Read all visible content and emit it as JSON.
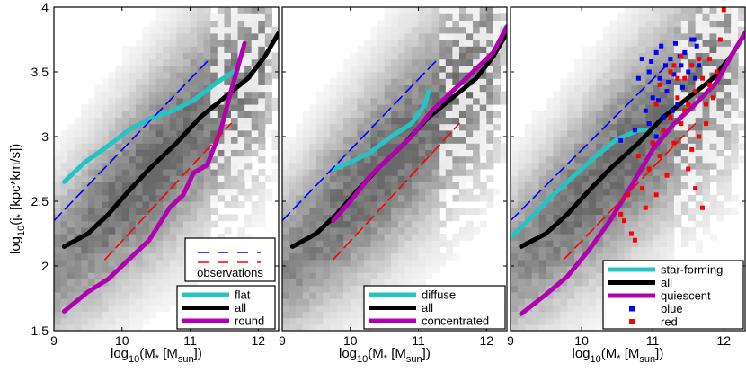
{
  "chart_data": [
    {
      "type": "line",
      "xlabel": "log10(M* [Msun])",
      "xlabel_parts": {
        "pre": "log",
        "sub1": "10",
        "mid": "(M",
        "star": "*",
        "open": " [M",
        "sub2": "sun",
        "close": "])"
      },
      "ylabel": "log10(j* [kpc*km/s])",
      "ylabel_parts": {
        "pre": "log",
        "sub1": "10",
        "mid": "(j",
        "star": "*",
        "rest": " [kpc*km/s])"
      },
      "xlim": [
        9,
        12.3
      ],
      "ylim": [
        1.5,
        4
      ],
      "xticks": [
        "9",
        "10",
        "11",
        "12"
      ],
      "yticks": [
        "1.5",
        "2",
        "2.5",
        "3",
        "3.5",
        "4"
      ],
      "background": "grayscale 2D histogram",
      "obs_legend": {
        "text": "observations",
        "placement": "lower-right",
        "colors": [
          "#0000ff",
          "#ff0000"
        ]
      },
      "legend_placement": "lower-right",
      "series": [
        {
          "name": "flat",
          "color": "#25c4c4",
          "x": [
            9.15,
            9.45,
            9.8,
            10.1,
            10.45,
            10.75,
            11.05,
            11.4,
            11.7
          ],
          "y": [
            2.65,
            2.8,
            2.93,
            3.05,
            3.15,
            3.2,
            3.28,
            3.42,
            3.52
          ]
        },
        {
          "name": "all",
          "color": "#000000",
          "x": [
            9.15,
            9.5,
            9.8,
            10.1,
            10.4,
            10.8,
            11.15,
            11.5,
            11.85,
            12.1,
            12.3
          ],
          "y": [
            2.15,
            2.25,
            2.4,
            2.58,
            2.75,
            2.95,
            3.15,
            3.3,
            3.45,
            3.62,
            3.8
          ]
        },
        {
          "name": "round",
          "color": "#b000b0",
          "x": [
            9.15,
            9.5,
            9.8,
            10.1,
            10.4,
            10.7,
            10.9,
            11.05,
            11.25,
            11.45,
            11.6,
            11.8
          ],
          "y": [
            1.65,
            1.8,
            1.9,
            2.05,
            2.2,
            2.45,
            2.55,
            2.72,
            2.78,
            3.05,
            3.35,
            3.72
          ]
        },
        {
          "name": "",
          "color": "#0000ff",
          "dash": true,
          "x": [
            9,
            11.25
          ],
          "y": [
            2.35,
            3.58
          ]
        },
        {
          "name": "",
          "color": "#ff0000",
          "dash": true,
          "x": [
            9.75,
            11.6
          ],
          "y": [
            2.05,
            3.1
          ]
        }
      ]
    },
    {
      "type": "line",
      "xlabel": "log10(M* [Msun])",
      "xlabel_parts": {
        "pre": "log",
        "sub1": "10",
        "mid": "(M",
        "star": "*",
        "open": " [M",
        "sub2": "sun",
        "close": "])"
      },
      "xlim": [
        9,
        12.3
      ],
      "ylim": [
        1.5,
        4
      ],
      "xticks": [
        "9",
        "10",
        "11",
        "12"
      ],
      "background": "grayscale 2D histogram",
      "legend_placement": "lower-right",
      "series": [
        {
          "name": "diffuse",
          "color": "#25c4c4",
          "x": [
            9.75,
            10.0,
            10.3,
            10.6,
            10.9,
            11.1,
            11.15
          ],
          "y": [
            2.75,
            2.8,
            2.88,
            3.0,
            3.1,
            3.25,
            3.35
          ]
        },
        {
          "name": "all",
          "color": "#000000",
          "x": [
            9.15,
            9.5,
            9.8,
            10.1,
            10.4,
            10.8,
            11.15,
            11.5,
            11.85,
            12.1,
            12.3
          ],
          "y": [
            2.15,
            2.25,
            2.4,
            2.58,
            2.75,
            2.95,
            3.15,
            3.3,
            3.45,
            3.62,
            3.8
          ]
        },
        {
          "name": "concentrated",
          "color": "#b000b0",
          "x": [
            9.75,
            10.0,
            10.3,
            10.6,
            10.9,
            11.2,
            11.5,
            11.8,
            12.1,
            12.3
          ],
          "y": [
            2.35,
            2.5,
            2.7,
            2.85,
            3.0,
            3.2,
            3.35,
            3.5,
            3.65,
            3.85
          ]
        },
        {
          "name": "",
          "color": "#0000ff",
          "dash": true,
          "x": [
            9,
            11.25
          ],
          "y": [
            2.35,
            3.58
          ]
        },
        {
          "name": "",
          "color": "#ff0000",
          "dash": true,
          "x": [
            9.75,
            11.6
          ],
          "y": [
            2.05,
            3.1
          ]
        }
      ]
    },
    {
      "type": "line",
      "xlabel": "log10(M* [Msun])",
      "xlabel_parts": {
        "pre": "log",
        "sub1": "10",
        "mid": "(M",
        "star": "*",
        "open": " [M",
        "sub2": "sun",
        "close": "])"
      },
      "xlim": [
        9,
        12.3
      ],
      "ylim": [
        1.5,
        4
      ],
      "xticks": [
        "9",
        "10",
        "11",
        "12"
      ],
      "background": "grayscale 2D histogram",
      "legend_placement": "lower-right",
      "series": [
        {
          "name": "star-forming",
          "color": "#25c4c4",
          "x": [
            9.0,
            9.3,
            9.6,
            9.9,
            10.2,
            10.5,
            10.8,
            11.0
          ],
          "y": [
            2.22,
            2.38,
            2.55,
            2.7,
            2.85,
            2.98,
            3.05,
            3.05
          ]
        },
        {
          "name": "all",
          "color": "#000000",
          "x": [
            9.15,
            9.5,
            9.8,
            10.1,
            10.4,
            10.8,
            11.15,
            11.5,
            11.85,
            12.1,
            12.3
          ],
          "y": [
            2.15,
            2.25,
            2.4,
            2.58,
            2.75,
            2.95,
            3.15,
            3.3,
            3.45,
            3.62,
            3.8
          ]
        },
        {
          "name": "quiescent",
          "color": "#b000b0",
          "x": [
            9.15,
            9.5,
            9.8,
            10.1,
            10.4,
            10.7,
            11.0,
            11.3,
            11.6,
            11.9,
            12.1,
            12.3
          ],
          "y": [
            1.63,
            1.78,
            1.92,
            2.12,
            2.35,
            2.62,
            2.9,
            3.1,
            3.25,
            3.42,
            3.62,
            3.8
          ]
        },
        {
          "name": "",
          "color": "#0000ff",
          "dash": true,
          "x": [
            9,
            11.25
          ],
          "y": [
            2.35,
            3.58
          ]
        },
        {
          "name": "",
          "color": "#ff0000",
          "dash": true,
          "x": [
            9.75,
            11.6
          ],
          "y": [
            2.05,
            3.1
          ]
        }
      ],
      "scatter": [
        {
          "name": "blue",
          "color": "#0000ff",
          "points": [
            [
              10.55,
              2.97
            ],
            [
              10.75,
              3.05
            ],
            [
              10.8,
              3.45
            ],
            [
              10.85,
              3.6
            ],
            [
              10.9,
              3.2
            ],
            [
              10.95,
              3.5
            ],
            [
              11.0,
              3.3
            ],
            [
              11.05,
              3.65
            ],
            [
              11.05,
              3.0
            ],
            [
              11.1,
              3.45
            ],
            [
              11.12,
              3.7
            ],
            [
              11.15,
              3.15
            ],
            [
              11.18,
              3.55
            ],
            [
              11.2,
              3.35
            ],
            [
              11.25,
              3.6
            ],
            [
              11.3,
              3.48
            ],
            [
              11.32,
              3.72
            ],
            [
              11.35,
              3.25
            ],
            [
              11.4,
              3.55
            ],
            [
              11.42,
              3.38
            ],
            [
              11.45,
              3.65
            ],
            [
              11.5,
              3.5
            ],
            [
              11.55,
              3.75
            ],
            [
              11.58,
              3.75
            ],
            [
              11.6,
              3.45
            ],
            [
              11.62,
              3.7
            ],
            [
              11.65,
              3.55
            ],
            [
              10.95,
              3.1
            ],
            [
              11.0,
              2.95
            ],
            [
              11.08,
              3.28
            ],
            [
              11.22,
              3.42
            ],
            [
              11.28,
              3.2
            ],
            [
              11.38,
              3.62
            ],
            [
              10.98,
              3.58
            ]
          ]
        },
        {
          "name": "red",
          "color": "#ff0000",
          "points": [
            [
              10.55,
              2.4
            ],
            [
              10.65,
              2.55
            ],
            [
              10.7,
              2.25
            ],
            [
              10.8,
              2.85
            ],
            [
              10.85,
              2.6
            ],
            [
              10.9,
              2.45
            ],
            [
              10.95,
              2.75
            ],
            [
              11.0,
              2.95
            ],
            [
              11.05,
              2.55
            ],
            [
              11.1,
              2.85
            ],
            [
              11.15,
              3.05
            ],
            [
              11.2,
              2.7
            ],
            [
              11.25,
              3.15
            ],
            [
              11.3,
              2.95
            ],
            [
              11.35,
              3.3
            ],
            [
              11.4,
              3.1
            ],
            [
              11.45,
              3.45
            ],
            [
              11.5,
              3.25
            ],
            [
              11.5,
              2.75
            ],
            [
              11.55,
              3.55
            ],
            [
              11.6,
              3.35
            ],
            [
              11.6,
              2.6
            ],
            [
              11.65,
              3.0
            ],
            [
              11.7,
              3.45
            ],
            [
              11.7,
              2.45
            ],
            [
              11.75,
              3.25
            ],
            [
              11.8,
              3.4
            ],
            [
              11.8,
              3.6
            ],
            [
              11.85,
              3.3
            ],
            [
              11.9,
              3.5
            ],
            [
              11.95,
              3.75
            ],
            [
              12.0,
              3.98
            ],
            [
              11.25,
              3.5
            ],
            [
              11.35,
              3.45
            ],
            [
              11.45,
              3.2
            ],
            [
              11.55,
              2.9
            ],
            [
              10.75,
              2.2
            ],
            [
              10.6,
              2.35
            ],
            [
              11.65,
              3.6
            ],
            [
              11.4,
              3.62
            ],
            [
              11.1,
              3.4
            ],
            [
              11.3,
              3.55
            ],
            [
              11.05,
              3.25
            ],
            [
              11.75,
              3.1
            ]
          ]
        }
      ]
    }
  ],
  "legends": [
    {
      "entries": [
        "flat",
        "all",
        "round"
      ],
      "colors": [
        "#25c4c4",
        "#000000",
        "#b000b0"
      ]
    },
    {
      "entries": [
        "diffuse",
        "all",
        "concentrated"
      ],
      "colors": [
        "#25c4c4",
        "#000000",
        "#b000b0"
      ]
    },
    {
      "entries": [
        "star-forming",
        "all",
        "quiescent",
        "blue",
        "red"
      ],
      "colors": [
        "#25c4c4",
        "#000000",
        "#b000b0",
        "#0000ff",
        "#ff0000"
      ]
    }
  ]
}
